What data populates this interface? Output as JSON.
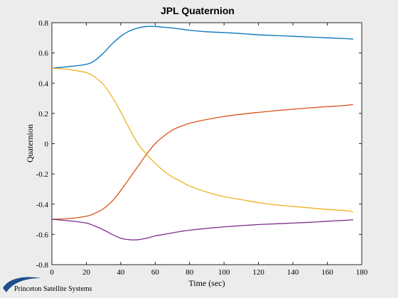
{
  "logo": {
    "text": "Princeton Satellite Systems"
  },
  "chart_data": {
    "type": "line",
    "title": "JPL Quaternion",
    "xlabel": "Time (sec)",
    "ylabel": "Quaternion",
    "xlim": [
      0,
      180
    ],
    "ylim": [
      -0.8,
      0.8
    ],
    "xticks": [
      0,
      20,
      40,
      60,
      80,
      100,
      120,
      140,
      160,
      180
    ],
    "yticks": [
      -0.8,
      -0.6,
      -0.4,
      -0.2,
      0,
      0.2,
      0.4,
      0.6,
      0.8
    ],
    "grid": false,
    "x": [
      0,
      10,
      20,
      25,
      30,
      35,
      40,
      45,
      50,
      55,
      60,
      65,
      70,
      75,
      80,
      90,
      100,
      110,
      120,
      130,
      140,
      150,
      160,
      170,
      175
    ],
    "series": [
      {
        "color": "#0072bd",
        "values": [
          0.5,
          0.51,
          0.525,
          0.55,
          0.6,
          0.66,
          0.71,
          0.745,
          0.765,
          0.775,
          0.775,
          0.77,
          0.765,
          0.758,
          0.75,
          0.74,
          0.735,
          0.728,
          0.72,
          0.715,
          0.71,
          0.705,
          0.7,
          0.695,
          0.692
        ]
      },
      {
        "color": "#d95319",
        "values": [
          -0.5,
          -0.495,
          -0.48,
          -0.46,
          -0.43,
          -0.38,
          -0.31,
          -0.23,
          -0.15,
          -0.07,
          0.0,
          0.05,
          0.09,
          0.115,
          0.135,
          0.16,
          0.18,
          0.195,
          0.207,
          0.218,
          0.228,
          0.237,
          0.245,
          0.252,
          0.26
        ]
      },
      {
        "color": "#edb120",
        "values": [
          0.5,
          0.49,
          0.47,
          0.44,
          0.39,
          0.31,
          0.21,
          0.1,
          0.0,
          -0.07,
          -0.13,
          -0.18,
          -0.22,
          -0.25,
          -0.28,
          -0.32,
          -0.35,
          -0.37,
          -0.39,
          -0.405,
          -0.415,
          -0.425,
          -0.435,
          -0.442,
          -0.45
        ]
      },
      {
        "color": "#7e2f8e",
        "values": [
          -0.5,
          -0.51,
          -0.525,
          -0.545,
          -0.57,
          -0.6,
          -0.625,
          -0.635,
          -0.635,
          -0.625,
          -0.61,
          -0.6,
          -0.59,
          -0.58,
          -0.572,
          -0.56,
          -0.55,
          -0.542,
          -0.535,
          -0.53,
          -0.525,
          -0.52,
          -0.513,
          -0.507,
          -0.503
        ]
      }
    ]
  }
}
